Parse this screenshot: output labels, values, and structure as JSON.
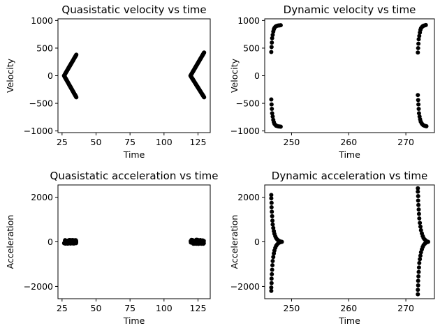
{
  "chart_data": [
    {
      "type": "scatter",
      "title": "Quasistatic velocity vs time",
      "xlabel": "Time",
      "ylabel": "Velocity",
      "xlim": [
        22,
        134
      ],
      "ylim": [
        -1030,
        1030
      ],
      "xticks": [
        25,
        50,
        75,
        100,
        125
      ],
      "yticks": [
        -1000,
        -500,
        0,
        500,
        1000
      ],
      "xtick_labels": [
        "25",
        "50",
        "75",
        "100",
        "125"
      ],
      "ytick_labels": [
        "−1000",
        "−500",
        "0",
        "500",
        "1000"
      ],
      "grid": false,
      "marker_color": "#000000",
      "segments": [
        {
          "x0": 26.5,
          "y0": 0,
          "x1": 35.5,
          "y1": 380,
          "n": 60
        },
        {
          "x0": 26.5,
          "y0": 0,
          "x1": 35.5,
          "y1": -390,
          "n": 60
        },
        {
          "x0": 119.5,
          "y0": 0,
          "x1": 129.5,
          "y1": 420,
          "n": 60
        },
        {
          "x0": 119.5,
          "y0": 0,
          "x1": 129.5,
          "y1": -390,
          "n": 60
        }
      ]
    },
    {
      "type": "scatter",
      "title": "Dynamic velocity vs time",
      "xlabel": "Time",
      "ylabel": "Velocity",
      "xlim": [
        245.3,
        275.0
      ],
      "ylim": [
        -1030,
        1030
      ],
      "xticks": [
        250,
        260,
        270
      ],
      "yticks": [
        -1000,
        -500,
        0,
        500,
        1000
      ],
      "xtick_labels": [
        "250",
        "260",
        "270"
      ],
      "ytick_labels": [
        "−1000",
        "−500",
        "0",
        "500",
        "1000"
      ],
      "grid": false,
      "marker_color": "#000000",
      "points": [
        [
          246.45,
          430
        ],
        [
          246.5,
          520
        ],
        [
          246.55,
          600
        ],
        [
          246.6,
          680
        ],
        [
          246.7,
          740
        ],
        [
          246.8,
          800
        ],
        [
          246.9,
          840
        ],
        [
          247.0,
          865
        ],
        [
          247.15,
          885
        ],
        [
          247.3,
          898
        ],
        [
          247.5,
          905
        ],
        [
          247.7,
          910
        ],
        [
          247.9,
          912
        ],
        [
          248.1,
          914
        ],
        [
          246.45,
          -430
        ],
        [
          246.5,
          -520
        ],
        [
          246.55,
          -600
        ],
        [
          246.6,
          -680
        ],
        [
          246.7,
          -740
        ],
        [
          246.8,
          -800
        ],
        [
          246.9,
          -840
        ],
        [
          247.0,
          -870
        ],
        [
          247.15,
          -890
        ],
        [
          247.3,
          -905
        ],
        [
          247.5,
          -912
        ],
        [
          247.7,
          -918
        ],
        [
          247.9,
          -920
        ],
        [
          248.1,
          -922
        ],
        [
          272.1,
          420
        ],
        [
          272.15,
          500
        ],
        [
          272.2,
          580
        ],
        [
          272.25,
          660
        ],
        [
          272.35,
          720
        ],
        [
          272.45,
          780
        ],
        [
          272.55,
          830
        ],
        [
          272.65,
          860
        ],
        [
          272.8,
          880
        ],
        [
          272.95,
          895
        ],
        [
          273.1,
          905
        ],
        [
          273.3,
          912
        ],
        [
          273.5,
          918
        ],
        [
          272.1,
          -350
        ],
        [
          272.15,
          -440
        ],
        [
          272.2,
          -520
        ],
        [
          272.25,
          -600
        ],
        [
          272.3,
          -680
        ],
        [
          272.4,
          -740
        ],
        [
          272.5,
          -790
        ],
        [
          272.6,
          -830
        ],
        [
          272.75,
          -860
        ],
        [
          272.9,
          -880
        ],
        [
          273.05,
          -895
        ],
        [
          273.25,
          -905
        ],
        [
          273.45,
          -912
        ],
        [
          273.6,
          -915
        ]
      ]
    },
    {
      "type": "scatter",
      "title": "Quasistatic acceleration vs time",
      "xlabel": "Time",
      "ylabel": "Acceleration",
      "xlim": [
        22,
        134
      ],
      "ylim": [
        -2550,
        2550
      ],
      "xticks": [
        25,
        50,
        75,
        100,
        125
      ],
      "yticks": [
        -2000,
        0,
        2000
      ],
      "xtick_labels": [
        "25",
        "50",
        "75",
        "100",
        "125"
      ],
      "ytick_labels": [
        "−2000",
        "0",
        "2000"
      ],
      "grid": false,
      "marker_color": "#000000",
      "clusters": [
        {
          "xmin": 26.5,
          "xmax": 35.5,
          "ymin": -80,
          "ymax": 80,
          "n": 90
        },
        {
          "xmin": 119.5,
          "xmax": 129.5,
          "ymin": -90,
          "ymax": 90,
          "n": 90
        }
      ]
    },
    {
      "type": "scatter",
      "title": "Dynamic acceleration vs time",
      "xlabel": "Time",
      "ylabel": "Acceleration",
      "xlim": [
        245.3,
        275.0
      ],
      "ylim": [
        -2550,
        2550
      ],
      "xticks": [
        250,
        260,
        270
      ],
      "yticks": [
        -2000,
        0,
        2000
      ],
      "xtick_labels": [
        "250",
        "260",
        "270"
      ],
      "ytick_labels": [
        "−2000",
        "0",
        "2000"
      ],
      "grid": false,
      "marker_color": "#000000",
      "points": [
        [
          246.45,
          2100
        ],
        [
          246.45,
          1950
        ],
        [
          246.5,
          1750
        ],
        [
          246.5,
          1550
        ],
        [
          246.55,
          1350
        ],
        [
          246.6,
          1150
        ],
        [
          246.65,
          950
        ],
        [
          246.7,
          780
        ],
        [
          246.8,
          620
        ],
        [
          246.9,
          480
        ],
        [
          247.0,
          360
        ],
        [
          247.15,
          250
        ],
        [
          247.3,
          170
        ],
        [
          247.5,
          100
        ],
        [
          247.7,
          60
        ],
        [
          247.9,
          30
        ],
        [
          248.1,
          10
        ],
        [
          248.3,
          0
        ],
        [
          246.45,
          -2200
        ],
        [
          246.45,
          -2050
        ],
        [
          246.5,
          -1850
        ],
        [
          246.5,
          -1650
        ],
        [
          246.55,
          -1450
        ],
        [
          246.6,
          -1250
        ],
        [
          246.65,
          -1050
        ],
        [
          246.7,
          -860
        ],
        [
          246.8,
          -680
        ],
        [
          246.9,
          -520
        ],
        [
          247.0,
          -390
        ],
        [
          247.15,
          -270
        ],
        [
          247.3,
          -180
        ],
        [
          247.5,
          -110
        ],
        [
          247.7,
          -60
        ],
        [
          247.9,
          -30
        ],
        [
          248.1,
          -10
        ],
        [
          272.1,
          2400
        ],
        [
          272.1,
          2250
        ],
        [
          272.15,
          2050
        ],
        [
          272.15,
          1850
        ],
        [
          272.2,
          1650
        ],
        [
          272.25,
          1450
        ],
        [
          272.3,
          1250
        ],
        [
          272.35,
          1050
        ],
        [
          272.45,
          850
        ],
        [
          272.55,
          680
        ],
        [
          272.65,
          520
        ],
        [
          272.8,
          380
        ],
        [
          272.95,
          260
        ],
        [
          273.1,
          170
        ],
        [
          273.3,
          100
        ],
        [
          273.5,
          50
        ],
        [
          273.7,
          20
        ],
        [
          273.9,
          0
        ],
        [
          272.1,
          -2350
        ],
        [
          272.1,
          -2150
        ],
        [
          272.15,
          -1950
        ],
        [
          272.15,
          -1750
        ],
        [
          272.2,
          -1550
        ],
        [
          272.25,
          -1350
        ],
        [
          272.3,
          -1150
        ],
        [
          272.35,
          -950
        ],
        [
          272.45,
          -780
        ],
        [
          272.55,
          -620
        ],
        [
          272.65,
          -470
        ],
        [
          272.8,
          -340
        ],
        [
          272.95,
          -230
        ],
        [
          273.1,
          -150
        ],
        [
          273.3,
          -90
        ],
        [
          273.5,
          -45
        ],
        [
          273.7,
          -15
        ]
      ]
    }
  ]
}
